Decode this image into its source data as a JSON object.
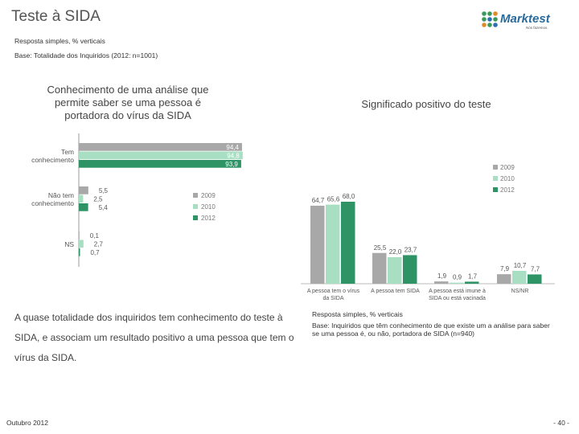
{
  "header": {
    "title": "Teste à SIDA",
    "response_type": "Resposta simples, % verticais",
    "base": "Base: Totalidade dos Inquiridos (2012: n=1001)",
    "logo_name": "Marktest",
    "logo_tagline": "Nós fazemos."
  },
  "colors": {
    "y2009": "#a8a8a8",
    "y2010": "#a8dfc3",
    "y2012": "#2e9466"
  },
  "chart_data": [
    {
      "type": "bar",
      "orientation": "horizontal",
      "title": "Conhecimento de uma análise que permite saber se uma pessoa é portadora do vírus da SIDA",
      "categories": [
        "Tem conhecimento",
        "Não tem conhecimento",
        "NS"
      ],
      "series": [
        {
          "name": "2009",
          "values": [
            94.4,
            5.5,
            0.1
          ]
        },
        {
          "name": "2010",
          "values": [
            94.8,
            2.5,
            2.7
          ]
        },
        {
          "name": "2012",
          "values": [
            93.9,
            5.4,
            0.7
          ]
        }
      ],
      "labels": [
        [
          "94,4",
          "5,5",
          "0,1"
        ],
        [
          "94,8",
          "2,5",
          "2,7"
        ],
        [
          "93,9",
          "5,4",
          "0,7"
        ]
      ],
      "legend": [
        "2009",
        "2010",
        "2012"
      ],
      "legend_position": "right",
      "xlim": [
        0,
        100
      ]
    },
    {
      "type": "bar",
      "orientation": "vertical",
      "title": "Significado positivo do teste",
      "categories": [
        "A pessoa tem o vírus da SIDA",
        "A pessoa tem SIDA",
        "A pessoa está imune à SIDA ou está vacinada",
        "NS/NR"
      ],
      "series": [
        {
          "name": "2009",
          "values": [
            64.7,
            25.5,
            1.9,
            7.9
          ]
        },
        {
          "name": "2010",
          "values": [
            65.6,
            22.0,
            0.9,
            10.7
          ]
        },
        {
          "name": "2012",
          "values": [
            68.0,
            23.7,
            1.7,
            7.7
          ]
        }
      ],
      "labels": [
        [
          "64,7",
          "25,5",
          "1,9",
          "7,9"
        ],
        [
          "65,6",
          "22,0",
          "0,9",
          "10,7"
        ],
        [
          "68,0",
          "23,7",
          "1,7",
          "7,7"
        ]
      ],
      "legend": [
        "2009",
        "2010",
        "2012"
      ],
      "legend_position": "top-right",
      "ylim": [
        0,
        70
      ]
    }
  ],
  "conclusion": "A quase totalidade dos inquiridos tem conhecimento do teste à SIDA, e associam um resultado positivo a uma pessoa que tem o vírus da SIDA.",
  "chart2_note": {
    "response_type": "Resposta simples, % verticais",
    "base": "Base: Inquiridos que têm conhecimento de que existe um a análise para saber se uma pessoa é, ou não, portadora de SIDA (n=940)"
  },
  "footer": {
    "date": "Outubro 2012",
    "page": "- 40 -"
  }
}
